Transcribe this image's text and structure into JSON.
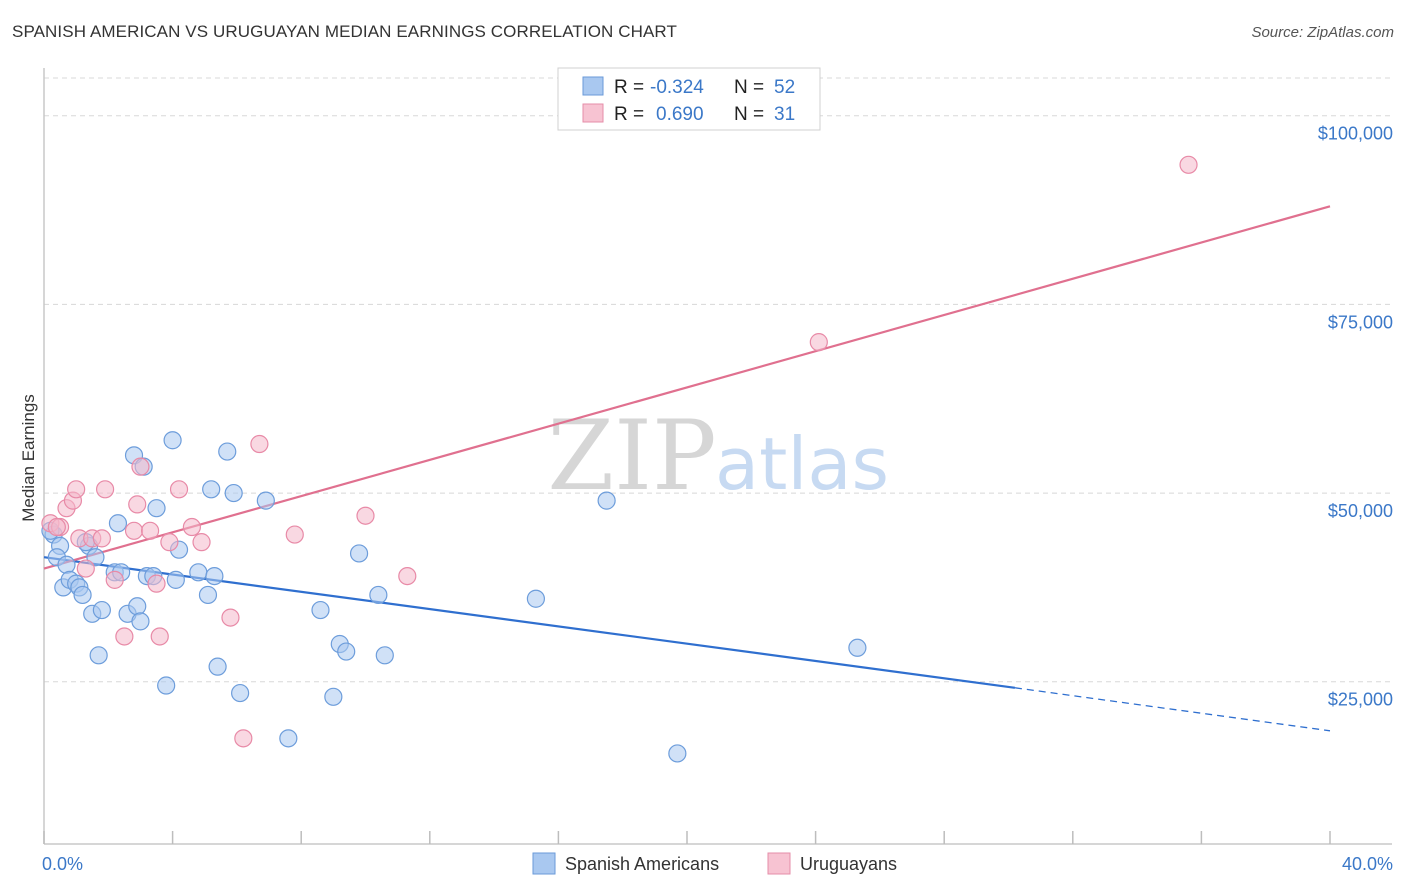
{
  "title": "SPANISH AMERICAN VS URUGUAYAN MEDIAN EARNINGS CORRELATION CHART",
  "source": "Source: ZipAtlas.com",
  "colors": {
    "blue": "#3b78c8",
    "blue_fill": "#a9c8f0",
    "blue_line": "#2f6fcf",
    "pink": "#e0708f",
    "pink_fill": "#f4b8ca",
    "grid": "#d8d8d8"
  },
  "legend": {
    "row1": {
      "r_label": "R =",
      "r_value": "-0.324",
      "n_label": "N =",
      "n_value": "52"
    },
    "row2": {
      "r_label": "R =",
      "r_value": "0.690",
      "n_label": "N =",
      "n_value": "31"
    }
  },
  "bottom_legend": {
    "series1": "Spanish Americans",
    "series2": "Uruguayans"
  },
  "watermark": {
    "zip": "ZIP",
    "atlas": "atlas"
  },
  "chart_data": {
    "type": "scatter",
    "title": "SPANISH AMERICAN VS URUGUAYAN MEDIAN EARNINGS CORRELATION CHART",
    "xlabel": "",
    "ylabel": "Median Earnings",
    "xlim": [
      0,
      40
    ],
    "ylim": [
      3500,
      105000
    ],
    "x_tick_labels": {
      "min": "0.0%",
      "max": "40.0%"
    },
    "y_ticks": [
      {
        "value": 25000,
        "label": "$25,000"
      },
      {
        "value": 50000,
        "label": "$50,000"
      },
      {
        "value": 75000,
        "label": "$75,000"
      },
      {
        "value": 100000,
        "label": "$100,000"
      }
    ],
    "series": [
      {
        "name": "Spanish Americans",
        "r": -0.324,
        "n": 52,
        "trend": {
          "x0": 0,
          "y0": 41500,
          "x1": 30.2,
          "y1": 24200,
          "x_dash_end": 40,
          "y_dash_end": 18500
        },
        "points": [
          [
            0.3,
            44500
          ],
          [
            0.5,
            43000
          ],
          [
            0.4,
            41500
          ],
          [
            0.6,
            37500
          ],
          [
            0.7,
            40500
          ],
          [
            0.8,
            38500
          ],
          [
            1.0,
            38000
          ],
          [
            1.1,
            37500
          ],
          [
            1.2,
            36500
          ],
          [
            1.4,
            43000
          ],
          [
            1.5,
            34000
          ],
          [
            1.6,
            41500
          ],
          [
            1.7,
            28500
          ],
          [
            1.8,
            34500
          ],
          [
            2.2,
            39500
          ],
          [
            2.3,
            46000
          ],
          [
            2.4,
            39500
          ],
          [
            2.6,
            34000
          ],
          [
            2.8,
            55000
          ],
          [
            2.9,
            35000
          ],
          [
            3.0,
            33000
          ],
          [
            3.2,
            39000
          ],
          [
            3.4,
            39000
          ],
          [
            3.5,
            48000
          ],
          [
            3.8,
            24500
          ],
          [
            4.1,
            38500
          ],
          [
            4.0,
            57000
          ],
          [
            4.2,
            42500
          ],
          [
            4.8,
            39500
          ],
          [
            5.1,
            36500
          ],
          [
            5.2,
            50500
          ],
          [
            5.3,
            39000
          ],
          [
            5.4,
            27000
          ],
          [
            5.7,
            55500
          ],
          [
            5.9,
            50000
          ],
          [
            6.1,
            23500
          ],
          [
            6.9,
            49000
          ],
          [
            7.6,
            17500
          ],
          [
            8.6,
            34500
          ],
          [
            9.0,
            23000
          ],
          [
            9.2,
            30000
          ],
          [
            9.4,
            29000
          ],
          [
            9.8,
            42000
          ],
          [
            10.4,
            36500
          ],
          [
            10.6,
            28500
          ],
          [
            15.3,
            36000
          ],
          [
            17.5,
            49000
          ],
          [
            19.7,
            15500
          ],
          [
            25.3,
            29500
          ],
          [
            0.2,
            45000
          ],
          [
            3.1,
            53500
          ],
          [
            1.3,
            43500
          ]
        ]
      },
      {
        "name": "Uruguayans",
        "r": 0.69,
        "n": 31,
        "trend": {
          "x0": 0,
          "y0": 40000,
          "x1": 40,
          "y1": 88000
        },
        "points": [
          [
            0.2,
            46000
          ],
          [
            0.5,
            45500
          ],
          [
            0.7,
            48000
          ],
          [
            0.9,
            49000
          ],
          [
            1.0,
            50500
          ],
          [
            1.1,
            44000
          ],
          [
            1.3,
            40000
          ],
          [
            1.5,
            44000
          ],
          [
            1.8,
            44000
          ],
          [
            1.9,
            50500
          ],
          [
            2.2,
            38500
          ],
          [
            2.5,
            31000
          ],
          [
            2.8,
            45000
          ],
          [
            2.9,
            48500
          ],
          [
            3.0,
            53500
          ],
          [
            3.3,
            45000
          ],
          [
            3.5,
            38000
          ],
          [
            3.6,
            31000
          ],
          [
            3.9,
            43500
          ],
          [
            4.2,
            50500
          ],
          [
            4.6,
            45500
          ],
          [
            4.9,
            43500
          ],
          [
            5.8,
            33500
          ],
          [
            6.2,
            17500
          ],
          [
            6.7,
            56500
          ],
          [
            7.8,
            44500
          ],
          [
            10.0,
            47000
          ],
          [
            11.3,
            39000
          ],
          [
            24.1,
            70000
          ],
          [
            35.6,
            93500
          ],
          [
            0.4,
            45500
          ]
        ]
      }
    ]
  }
}
